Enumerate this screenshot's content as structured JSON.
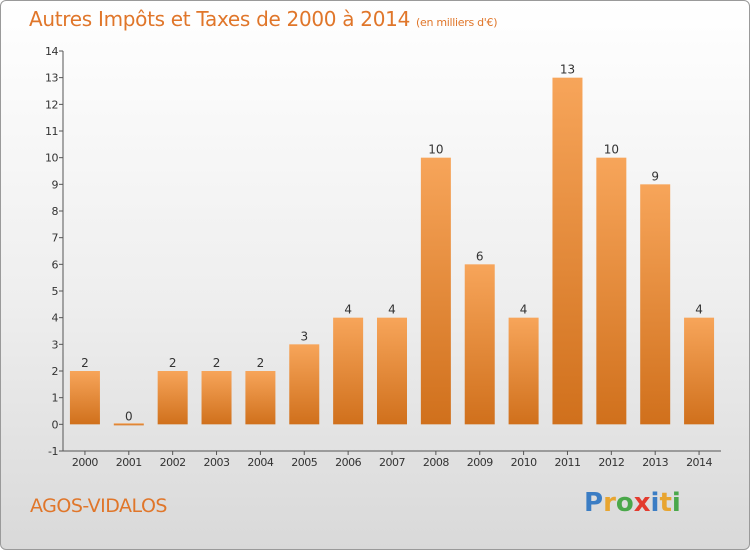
{
  "title": "Autres Impôts et Taxes de 2000 à 2014",
  "subtitle": "(en milliers d'€)",
  "commune": "AGOS-VIDALOS",
  "logo": {
    "letters": [
      "P",
      "r",
      "o",
      "x",
      "i",
      "t",
      "i"
    ],
    "colors": [
      "#3b7dc4",
      "#e8a530",
      "#4aa84a",
      "#e33b2e",
      "#3b7dc4",
      "#e8a530",
      "#4aa84a"
    ]
  },
  "colors": {
    "bar_top": "#f7a55a",
    "bar_bottom": "#d0701c",
    "text_accent": "#e0762a"
  },
  "chart_data": {
    "type": "bar",
    "title": "Autres Impôts et Taxes de 2000 à 2014",
    "subtitle": "(en milliers d'€)",
    "categories": [
      "2000",
      "2001",
      "2002",
      "2003",
      "2004",
      "2005",
      "2006",
      "2007",
      "2008",
      "2009",
      "2010",
      "2011",
      "2012",
      "2013",
      "2014"
    ],
    "values": [
      2,
      0,
      2,
      2,
      2,
      3,
      4,
      4,
      10,
      6,
      4,
      13,
      10,
      9,
      4
    ],
    "ylim": [
      -1,
      14
    ],
    "yticks": [
      -1,
      0,
      1,
      2,
      3,
      4,
      5,
      6,
      7,
      8,
      9,
      10,
      11,
      12,
      13,
      14
    ],
    "grid": false,
    "legend": "none"
  }
}
